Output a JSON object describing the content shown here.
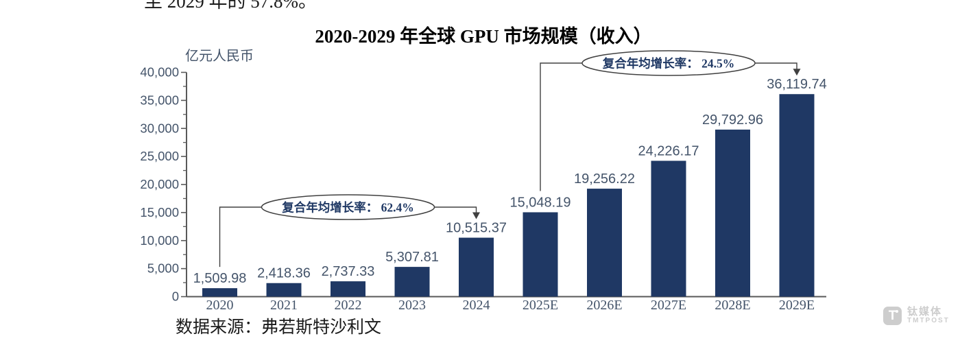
{
  "page": {
    "top_text": "至 2029 年的 57.8%。",
    "source_text": "数据来源：弗若斯特沙利文",
    "watermark": {
      "cn": "钛媒体",
      "en": "TMTPOST"
    }
  },
  "chart_data": {
    "type": "bar",
    "title": "2020-2029 年全球 GPU 市场规模（收入）",
    "ylabel": "亿元人民币",
    "xlabel": "",
    "categories": [
      "2020",
      "2021",
      "2022",
      "2023",
      "2024",
      "2025E",
      "2026E",
      "2027E",
      "2028E",
      "2029E"
    ],
    "values": [
      1509.98,
      2418.36,
      2737.33,
      5307.81,
      10515.37,
      15048.19,
      19256.22,
      24226.17,
      29792.96,
      36119.74
    ],
    "value_labels": [
      "1,509.98",
      "2,418.36",
      "2,737.33",
      "5,307.81",
      "10,515.37",
      "15,048.19",
      "19,256.22",
      "24,226.17",
      "29,792.96",
      "36,119.74"
    ],
    "ylim": [
      0,
      40000
    ],
    "ytick_step": 5000,
    "ytick_minor_step": 2500,
    "ytick_labels": [
      "0",
      "5,000",
      "10,000",
      "15,000",
      "20,000",
      "25,000",
      "30,000",
      "35,000",
      "40,000"
    ],
    "grid": false,
    "legend": null,
    "annotations": [
      {
        "label": "复合年均增长率：  62.4%",
        "cagr": "62.4%",
        "from": "2020",
        "to": "2024"
      },
      {
        "label": "复合年均增长率：  24.5%",
        "cagr": "24.5%",
        "from": "2025E",
        "to": "2029E"
      }
    ],
    "colors": {
      "bar": "#1F3864",
      "labels": "#44546A",
      "axis": "#595959",
      "annotation_line": "#404040",
      "annotation_text": "#1F3864",
      "title": "#000000",
      "watermark": "#cdcdcd"
    }
  }
}
